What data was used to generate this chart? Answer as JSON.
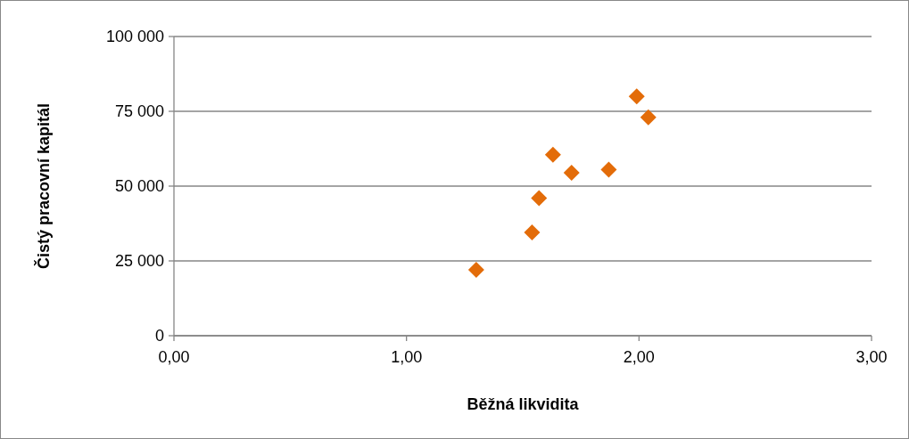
{
  "chart_data": {
    "type": "scatter",
    "xlabel": "Běžná likvidita",
    "ylabel": "Čistý pracovní kapitál",
    "x": [
      1.3,
      1.54,
      1.57,
      1.63,
      1.71,
      1.87,
      1.99,
      2.04
    ],
    "series": [
      {
        "color": "#e36c09",
        "values": [
          22000,
          34500,
          46000,
          60500,
          54500,
          55500,
          80000,
          73000
        ]
      }
    ],
    "xlim": [
      0,
      3
    ],
    "xticks": [
      {
        "value": 0,
        "label": "0,00"
      },
      {
        "value": 1,
        "label": "1,00"
      },
      {
        "value": 2,
        "label": "2,00"
      },
      {
        "value": 3,
        "label": "3,00"
      }
    ],
    "ylim": [
      0,
      100000
    ],
    "yticks": [
      0,
      {
        "value": 25000,
        "label": "25 000"
      },
      {
        "value": 50000,
        "label": "50 000"
      },
      {
        "value": 75000,
        "label": "75 000"
      },
      {
        "value": 100000,
        "label": "100 000"
      }
    ],
    "grid": "y",
    "marker": "diamond"
  }
}
